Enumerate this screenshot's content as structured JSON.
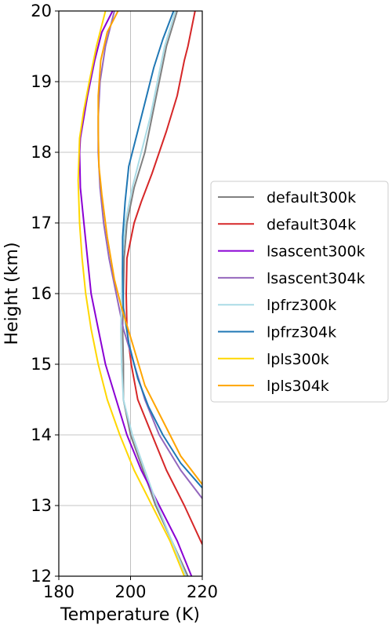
{
  "chart_data": {
    "type": "line",
    "xlabel": "Temperature (K)",
    "ylabel": "Height (km)",
    "xlim": [
      180,
      220
    ],
    "ylim": [
      12,
      20
    ],
    "xticks": [
      "180",
      "200",
      "220"
    ],
    "yticks": [
      "12",
      "13",
      "14",
      "15",
      "16",
      "17",
      "18",
      "19",
      "20"
    ],
    "grid": true,
    "legend_position": "right, outside plot",
    "series": [
      {
        "name": "default300k",
        "color": "#808080",
        "points": [
          [
            216,
            12
          ],
          [
            207,
            13
          ],
          [
            200,
            14
          ],
          [
            198,
            14.5
          ],
          [
            198,
            15
          ],
          [
            197.8,
            15.5
          ],
          [
            198,
            16
          ],
          [
            198.2,
            16.5
          ],
          [
            199,
            17
          ],
          [
            201,
            17.5
          ],
          [
            204,
            18
          ],
          [
            206,
            18.5
          ],
          [
            208,
            19
          ],
          [
            210,
            19.5
          ],
          [
            213,
            20
          ]
        ]
      },
      {
        "name": "default304k",
        "color": "#d62728",
        "points": [
          [
            220,
            12.45
          ],
          [
            215,
            13
          ],
          [
            210,
            13.5
          ],
          [
            206,
            14
          ],
          [
            202,
            14.5
          ],
          [
            200.2,
            15
          ],
          [
            199,
            15.5
          ],
          [
            198.8,
            16
          ],
          [
            199,
            16.5
          ],
          [
            201,
            17
          ],
          [
            203,
            17.3
          ],
          [
            206,
            17.7
          ],
          [
            210,
            18.3
          ],
          [
            213,
            18.8
          ],
          [
            215,
            19.3
          ],
          [
            216,
            19.5
          ],
          [
            218,
            20
          ]
        ]
      },
      {
        "name": "lsascent300k",
        "color": "#8a00d4",
        "points": [
          [
            217,
            12
          ],
          [
            213,
            12.5
          ],
          [
            208,
            13
          ],
          [
            203,
            13.5
          ],
          [
            199,
            14
          ],
          [
            196,
            14.5
          ],
          [
            193,
            15
          ],
          [
            191,
            15.5
          ],
          [
            189,
            16
          ],
          [
            188,
            16.5
          ],
          [
            187,
            17
          ],
          [
            186,
            17.5
          ],
          [
            185.8,
            18
          ],
          [
            186,
            18.2
          ],
          [
            188,
            18.8
          ],
          [
            190,
            19.3
          ],
          [
            192,
            19.7
          ],
          [
            195,
            20
          ]
        ]
      },
      {
        "name": "lsascent304k",
        "color": "#9467bd",
        "points": [
          [
            220,
            13.1
          ],
          [
            214,
            13.5
          ],
          [
            208,
            14
          ],
          [
            204,
            14.5
          ],
          [
            201,
            15
          ],
          [
            198,
            15.5
          ],
          [
            196,
            16
          ],
          [
            194,
            16.5
          ],
          [
            192.5,
            17
          ],
          [
            191.5,
            17.5
          ],
          [
            191,
            18
          ],
          [
            191,
            18.5
          ],
          [
            191.5,
            19
          ],
          [
            193,
            19.5
          ],
          [
            195.5,
            20
          ]
        ]
      },
      {
        "name": "lpfrz300k",
        "color": "#aadce6",
        "points": [
          [
            215.5,
            12
          ],
          [
            207.5,
            13
          ],
          [
            200.5,
            14
          ],
          [
            198,
            14.5
          ],
          [
            197.5,
            15
          ],
          [
            197.3,
            15.5
          ],
          [
            197.5,
            16
          ],
          [
            197.8,
            16.5
          ],
          [
            198.5,
            17
          ],
          [
            200.5,
            17.5
          ],
          [
            203,
            18
          ],
          [
            205.5,
            18.5
          ],
          [
            207.5,
            19
          ],
          [
            209.5,
            19.5
          ],
          [
            212.5,
            20
          ]
        ]
      },
      {
        "name": "lpfrz304k",
        "color": "#1f77b4",
        "points": [
          [
            220,
            13.25
          ],
          [
            214,
            13.6
          ],
          [
            209,
            14
          ],
          [
            205,
            14.4
          ],
          [
            202,
            14.8
          ],
          [
            199.5,
            15.3
          ],
          [
            198,
            15.8
          ],
          [
            197.8,
            16.3
          ],
          [
            197.8,
            16.8
          ],
          [
            198.5,
            17.3
          ],
          [
            199.5,
            17.8
          ],
          [
            202,
            18.3
          ],
          [
            204.5,
            18.8
          ],
          [
            206.5,
            19.2
          ],
          [
            209,
            19.6
          ],
          [
            212,
            20
          ]
        ]
      },
      {
        "name": "lpls300k",
        "color": "#ffd700",
        "points": [
          [
            215,
            12
          ],
          [
            211,
            12.5
          ],
          [
            206,
            13
          ],
          [
            201,
            13.5
          ],
          [
            197,
            14
          ],
          [
            193.5,
            14.5
          ],
          [
            191,
            15
          ],
          [
            189,
            15.5
          ],
          [
            187.5,
            16
          ],
          [
            186.5,
            16.5
          ],
          [
            185.8,
            17
          ],
          [
            185.4,
            17.6
          ],
          [
            185.8,
            18.2
          ],
          [
            187,
            18.6
          ],
          [
            188.5,
            19
          ],
          [
            190.5,
            19.5
          ],
          [
            193,
            20
          ]
        ]
      },
      {
        "name": "lpls304k",
        "color": "#ffa500",
        "points": [
          [
            220,
            13.3
          ],
          [
            214,
            13.7
          ],
          [
            209,
            14.2
          ],
          [
            204,
            14.7
          ],
          [
            200.5,
            15.3
          ],
          [
            197.5,
            15.8
          ],
          [
            195.5,
            16.2
          ],
          [
            193.5,
            16.8
          ],
          [
            192,
            17.4
          ],
          [
            191.2,
            17.8
          ],
          [
            191,
            18.3
          ],
          [
            191,
            18.8
          ],
          [
            191.7,
            19.3
          ],
          [
            193.5,
            19.7
          ],
          [
            196.5,
            20
          ]
        ]
      }
    ]
  }
}
